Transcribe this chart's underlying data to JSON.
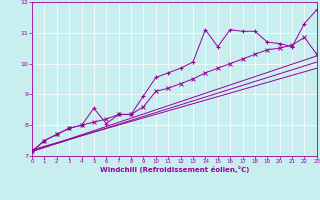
{
  "xlabel": "Windchill (Refroidissement éolien,°C)",
  "bg_color": "#c8eef0",
  "line_color": "#990099",
  "xlim": [
    0,
    23
  ],
  "ylim": [
    7,
    12
  ],
  "xticks": [
    0,
    1,
    2,
    3,
    4,
    5,
    6,
    7,
    8,
    9,
    10,
    11,
    12,
    13,
    14,
    15,
    16,
    17,
    18,
    19,
    20,
    21,
    22,
    23
  ],
  "yticks": [
    7,
    8,
    9,
    10,
    11,
    12
  ],
  "series1_x": [
    0,
    1,
    2,
    3,
    4,
    5,
    6,
    7,
    8,
    9,
    10,
    11,
    12,
    13,
    14,
    15,
    16,
    17,
    18,
    19,
    20,
    21,
    22,
    23
  ],
  "series1_y": [
    7.15,
    7.5,
    7.7,
    7.9,
    8.0,
    8.55,
    8.05,
    8.35,
    8.35,
    8.95,
    9.55,
    9.7,
    9.85,
    10.05,
    11.1,
    10.55,
    11.1,
    11.05,
    11.05,
    10.7,
    10.65,
    10.55,
    11.3,
    11.75
  ],
  "series2_x": [
    0,
    1,
    2,
    3,
    4,
    5,
    6,
    7,
    8,
    9,
    10,
    11,
    12,
    13,
    14,
    15,
    16,
    17,
    18,
    19,
    20,
    21,
    22,
    23
  ],
  "series2_y": [
    7.15,
    7.5,
    7.7,
    7.9,
    8.0,
    8.1,
    8.2,
    8.35,
    8.35,
    8.6,
    9.1,
    9.2,
    9.35,
    9.5,
    9.7,
    9.85,
    10.0,
    10.15,
    10.3,
    10.45,
    10.5,
    10.6,
    10.85,
    10.3
  ],
  "line1_x": [
    0,
    23
  ],
  "line1_y": [
    7.15,
    10.25
  ],
  "line2_x": [
    0,
    23
  ],
  "line2_y": [
    7.15,
    10.05
  ],
  "line3_x": [
    0,
    23
  ],
  "line3_y": [
    7.2,
    9.85
  ]
}
